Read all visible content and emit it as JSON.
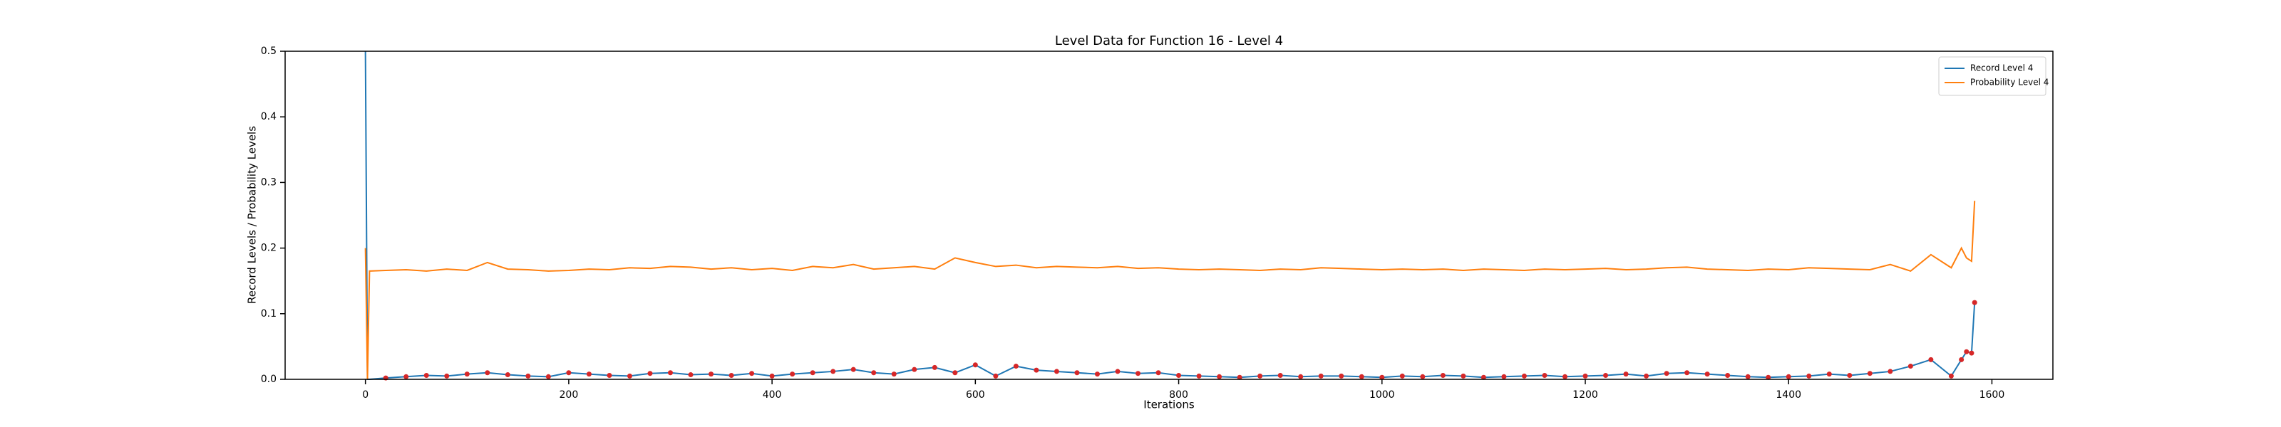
{
  "chart_data": {
    "type": "line",
    "title": "Level Data for Function 16 - Level 4",
    "xlabel": "Iterations",
    "ylabel": "Record Levels / Probability Levels",
    "x": [
      0,
      2,
      4,
      20,
      40,
      60,
      80,
      100,
      120,
      140,
      160,
      180,
      200,
      220,
      240,
      260,
      280,
      300,
      320,
      340,
      360,
      380,
      400,
      420,
      440,
      460,
      480,
      500,
      520,
      540,
      560,
      580,
      600,
      620,
      640,
      660,
      680,
      700,
      720,
      740,
      760,
      780,
      800,
      820,
      840,
      860,
      880,
      900,
      920,
      940,
      960,
      980,
      1000,
      1020,
      1040,
      1060,
      1080,
      1100,
      1120,
      1140,
      1160,
      1180,
      1200,
      1220,
      1240,
      1260,
      1280,
      1300,
      1320,
      1340,
      1360,
      1380,
      1400,
      1420,
      1440,
      1460,
      1480,
      1500,
      1520,
      1540,
      1560,
      1570,
      1575,
      1580,
      1583
    ],
    "series": [
      {
        "name": "Record Level 4",
        "color": "#1f77b4",
        "marker_color": "#d62728",
        "values": [
          0.5,
          0,
          0,
          0.002,
          0.004,
          0.006,
          0.005,
          0.008,
          0.01,
          0.007,
          0.005,
          0.004,
          0.01,
          0.008,
          0.006,
          0.005,
          0.009,
          0.01,
          0.007,
          0.008,
          0.006,
          0.009,
          0.005,
          0.008,
          0.01,
          0.012,
          0.015,
          0.01,
          0.008,
          0.015,
          0.018,
          0.01,
          0.022,
          0.005,
          0.02,
          0.014,
          0.012,
          0.01,
          0.008,
          0.012,
          0.009,
          0.01,
          0.006,
          0.005,
          0.004,
          0.003,
          0.005,
          0.006,
          0.004,
          0.005,
          0.005,
          0.004,
          0.003,
          0.005,
          0.004,
          0.006,
          0.005,
          0.003,
          0.004,
          0.005,
          0.006,
          0.004,
          0.005,
          0.006,
          0.008,
          0.005,
          0.009,
          0.01,
          0.008,
          0.006,
          0.004,
          0.003,
          0.004,
          0.005,
          0.008,
          0.006,
          0.009,
          0.012,
          0.02,
          0.03,
          0.005,
          0.03,
          0.042,
          0.04,
          0.117
        ]
      },
      {
        "name": "Probability Level 4",
        "color": "#ff7f0e",
        "values": [
          0.2,
          0,
          0.165,
          0.166,
          0.167,
          0.165,
          0.168,
          0.166,
          0.178,
          0.168,
          0.167,
          0.165,
          0.166,
          0.168,
          0.167,
          0.17,
          0.169,
          0.172,
          0.171,
          0.168,
          0.17,
          0.167,
          0.169,
          0.166,
          0.172,
          0.17,
          0.175,
          0.168,
          0.17,
          0.172,
          0.168,
          0.185,
          0.178,
          0.172,
          0.174,
          0.17,
          0.172,
          0.171,
          0.17,
          0.172,
          0.169,
          0.17,
          0.168,
          0.167,
          0.168,
          0.167,
          0.166,
          0.168,
          0.167,
          0.17,
          0.169,
          0.168,
          0.167,
          0.168,
          0.167,
          0.168,
          0.166,
          0.168,
          0.167,
          0.166,
          0.168,
          0.167,
          0.168,
          0.169,
          0.167,
          0.168,
          0.17,
          0.171,
          0.168,
          0.167,
          0.166,
          0.168,
          0.167,
          0.17,
          0.169,
          0.168,
          0.167,
          0.175,
          0.165,
          0.19,
          0.17,
          0.2,
          0.185,
          0.18,
          0.272
        ]
      }
    ],
    "xlim": [
      -79,
      1660
    ],
    "ylim": [
      0,
      0.5
    ],
    "xticks": [
      0,
      200,
      400,
      600,
      800,
      1000,
      1200,
      1400,
      1600
    ],
    "yticks": [
      {
        "value": 0,
        "label": "0.0"
      },
      0.1,
      0.2,
      0.3,
      0.4,
      0.5
    ],
    "legend": "upper right"
  }
}
